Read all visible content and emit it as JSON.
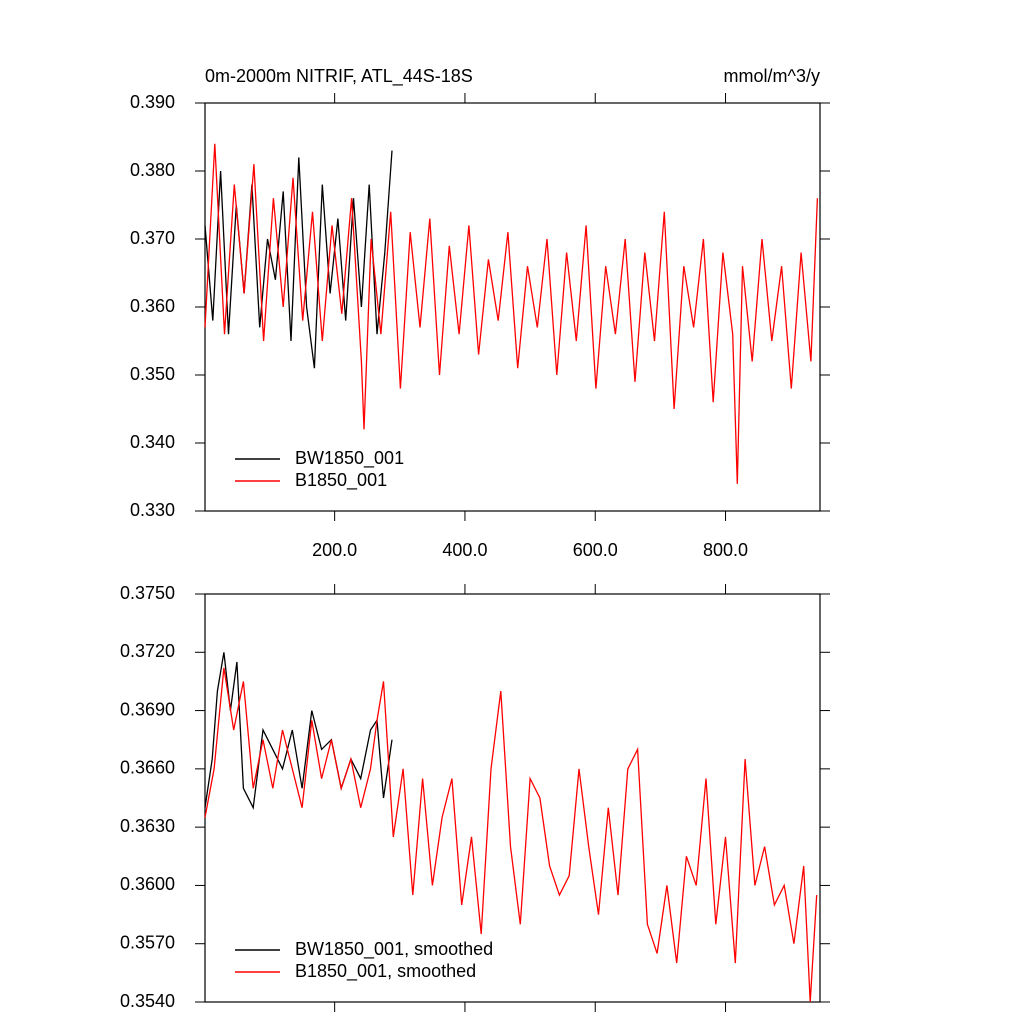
{
  "chart_data": [
    {
      "type": "line",
      "title": "0m-2000m NITRIF, ATL_44S-18S",
      "units": "mmol/m^3/y",
      "xlim": [
        1,
        945
      ],
      "ylim": [
        0.33,
        0.39
      ],
      "xticks": [
        {
          "value": 200,
          "label": "200.0"
        },
        {
          "value": 400,
          "label": "400.0"
        },
        {
          "value": 600,
          "label": "600.0"
        },
        {
          "value": 800,
          "label": "800.0"
        }
      ],
      "yticks": [
        {
          "value": 0.33,
          "label": "0.330"
        },
        {
          "value": 0.34,
          "label": "0.340"
        },
        {
          "value": 0.35,
          "label": "0.350"
        },
        {
          "value": 0.36,
          "label": "0.360"
        },
        {
          "value": 0.37,
          "label": "0.370"
        },
        {
          "value": 0.38,
          "label": "0.380"
        },
        {
          "value": 0.39,
          "label": "0.390"
        }
      ],
      "legend": "lower left",
      "series": [
        {
          "name": "BW1850_001",
          "color": "#000000",
          "x": [
            1,
            13,
            25,
            37,
            49,
            61,
            73,
            85,
            97,
            109,
            121,
            133,
            145,
            157,
            169,
            181,
            193,
            205,
            217,
            229,
            241,
            253,
            265,
            277,
            288
          ],
          "values": [
            0.372,
            0.358,
            0.38,
            0.356,
            0.375,
            0.362,
            0.378,
            0.357,
            0.37,
            0.364,
            0.377,
            0.355,
            0.382,
            0.36,
            0.351,
            0.378,
            0.362,
            0.373,
            0.358,
            0.376,
            0.36,
            0.378,
            0.356,
            0.368,
            0.383
          ]
        },
        {
          "name": "B1850_001",
          "color": "#ff0000",
          "x": [
            1,
            16,
            31,
            46,
            61,
            76,
            91,
            106,
            121,
            136,
            151,
            166,
            181,
            196,
            211,
            226,
            241,
            245,
            256,
            271,
            286,
            301,
            316,
            331,
            346,
            361,
            376,
            391,
            406,
            421,
            436,
            451,
            466,
            481,
            496,
            511,
            526,
            541,
            556,
            571,
            586,
            601,
            616,
            631,
            646,
            661,
            676,
            691,
            706,
            721,
            736,
            751,
            766,
            781,
            796,
            811,
            818,
            826,
            841,
            856,
            871,
            886,
            901,
            916,
            931,
            941
          ],
          "values": [
            0.357,
            0.384,
            0.356,
            0.378,
            0.362,
            0.381,
            0.355,
            0.376,
            0.36,
            0.379,
            0.358,
            0.374,
            0.355,
            0.372,
            0.359,
            0.376,
            0.352,
            0.342,
            0.37,
            0.356,
            0.374,
            0.348,
            0.371,
            0.357,
            0.373,
            0.35,
            0.369,
            0.356,
            0.372,
            0.353,
            0.367,
            0.358,
            0.371,
            0.351,
            0.366,
            0.357,
            0.37,
            0.35,
            0.368,
            0.355,
            0.372,
            0.348,
            0.366,
            0.356,
            0.37,
            0.349,
            0.368,
            0.355,
            0.374,
            0.345,
            0.366,
            0.357,
            0.37,
            0.346,
            0.368,
            0.356,
            0.334,
            0.366,
            0.352,
            0.37,
            0.355,
            0.366,
            0.348,
            0.368,
            0.352,
            0.376
          ]
        }
      ]
    },
    {
      "type": "line",
      "xlim": [
        1,
        945
      ],
      "ylim": [
        0.354,
        0.375
      ],
      "xticks": [
        200,
        400,
        600,
        800
      ],
      "yticks": [
        {
          "value": 0.354,
          "label": "0.3540"
        },
        {
          "value": 0.357,
          "label": "0.3570"
        },
        {
          "value": 0.36,
          "label": "0.3600"
        },
        {
          "value": 0.363,
          "label": "0.3630"
        },
        {
          "value": 0.366,
          "label": "0.3660"
        },
        {
          "value": 0.369,
          "label": "0.3690"
        },
        {
          "value": 0.372,
          "label": "0.3720"
        },
        {
          "value": 0.375,
          "label": "0.3750"
        }
      ],
      "legend": "lower left",
      "series": [
        {
          "name": "BW1850_001, smoothed",
          "color": "#000000",
          "x": [
            1,
            12,
            20,
            30,
            40,
            50,
            60,
            75,
            90,
            105,
            120,
            135,
            150,
            165,
            180,
            195,
            210,
            225,
            240,
            255,
            265,
            275,
            288
          ],
          "values": [
            0.364,
            0.3665,
            0.37,
            0.372,
            0.369,
            0.3715,
            0.365,
            0.364,
            0.368,
            0.367,
            0.366,
            0.368,
            0.365,
            0.369,
            0.367,
            0.3675,
            0.365,
            0.3665,
            0.3655,
            0.368,
            0.3685,
            0.3645,
            0.3675
          ]
        },
        {
          "name": "B1850_001, smoothed",
          "color": "#ff0000",
          "x": [
            1,
            15,
            30,
            45,
            60,
            75,
            90,
            105,
            120,
            135,
            150,
            165,
            180,
            195,
            210,
            225,
            240,
            255,
            265,
            275,
            290,
            305,
            320,
            335,
            350,
            365,
            380,
            395,
            410,
            425,
            440,
            455,
            470,
            485,
            500,
            515,
            530,
            545,
            560,
            575,
            590,
            605,
            620,
            635,
            650,
            665,
            680,
            695,
            710,
            725,
            740,
            755,
            770,
            785,
            800,
            815,
            830,
            845,
            860,
            875,
            890,
            905,
            920,
            930,
            940
          ],
          "values": [
            0.3635,
            0.366,
            0.3712,
            0.368,
            0.3705,
            0.365,
            0.3675,
            0.365,
            0.368,
            0.366,
            0.364,
            0.3685,
            0.3655,
            0.3675,
            0.365,
            0.3665,
            0.364,
            0.366,
            0.3685,
            0.3705,
            0.3625,
            0.366,
            0.3595,
            0.3655,
            0.36,
            0.3635,
            0.3655,
            0.359,
            0.3625,
            0.3575,
            0.366,
            0.37,
            0.362,
            0.358,
            0.3655,
            0.3645,
            0.361,
            0.3595,
            0.3605,
            0.366,
            0.362,
            0.3585,
            0.364,
            0.3595,
            0.366,
            0.367,
            0.358,
            0.3565,
            0.36,
            0.356,
            0.3615,
            0.36,
            0.3655,
            0.358,
            0.3625,
            0.356,
            0.3665,
            0.36,
            0.362,
            0.359,
            0.36,
            0.357,
            0.361,
            0.354,
            0.3595
          ]
        }
      ]
    }
  ]
}
